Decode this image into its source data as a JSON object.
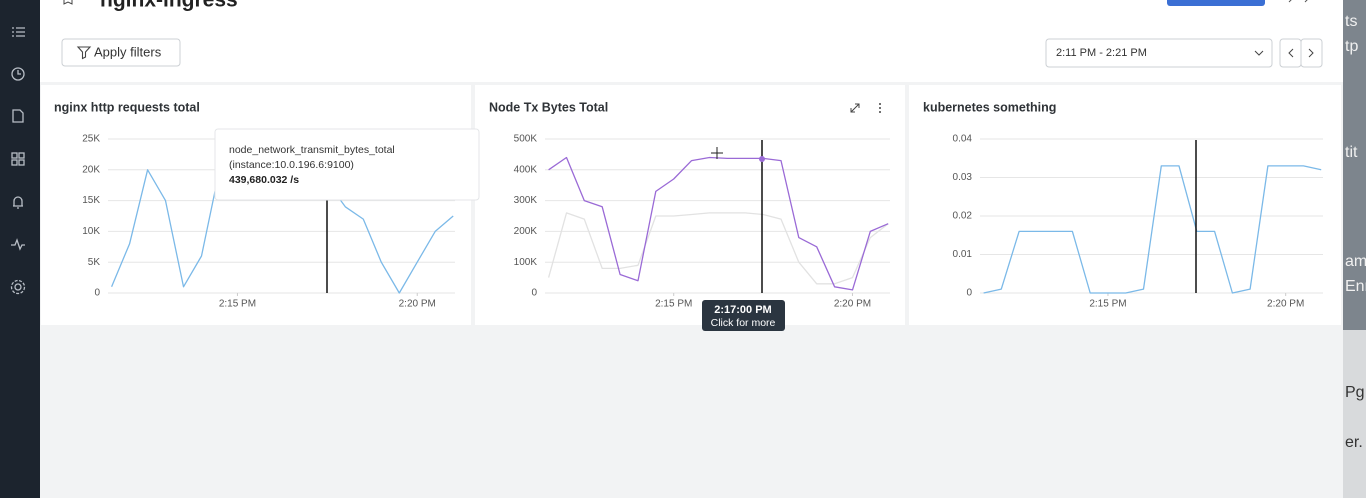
{
  "header": {
    "title": "nginx-ingress",
    "apply_filters": "Apply filters",
    "time_range": "2:11 PM - 2:21 PM"
  },
  "panels": [
    {
      "title": "nginx http requests total",
      "x": [
        11.5,
        12,
        12.5,
        13,
        13.5,
        14,
        14.5,
        15,
        15.5,
        16,
        16.5,
        17,
        17.5,
        18,
        18.5,
        19,
        19.5,
        20,
        20.5,
        21
      ],
      "xlim": [
        11.4,
        21.05
      ],
      "xticks": [
        {
          "value": 15,
          "label": "2:15 PM"
        },
        {
          "value": 20,
          "label": "2:20 PM"
        }
      ],
      "ylim": [
        0,
        25000
      ],
      "yticks": [
        0,
        {
          "value": 5000,
          "label": "5K"
        },
        {
          "value": 10000,
          "label": "10K"
        },
        {
          "value": 15000,
          "label": "15K"
        },
        {
          "value": 20000,
          "label": "20K"
        },
        {
          "value": 25000,
          "label": "25K"
        }
      ],
      "series": [
        {
          "color": "#7bb9e8",
          "values": [
            1000,
            8000,
            20000,
            15000,
            1000,
            6000,
            20000,
            22000,
            22000,
            22000,
            21000,
            20000,
            18000,
            14000,
            12000,
            5000,
            0,
            5000,
            10000,
            12500
          ]
        }
      ]
    },
    {
      "title": "Node Tx Bytes Total",
      "x": [
        11.5,
        12,
        12.5,
        13,
        13.5,
        14,
        14.5,
        15,
        15.5,
        16,
        16.5,
        17,
        17.5,
        18,
        18.5,
        19,
        19.5,
        20,
        20.5,
        21
      ],
      "xlim": [
        11.4,
        21.05
      ],
      "xticks": [
        {
          "value": 15,
          "label": "2:15 PM"
        },
        {
          "value": 20,
          "label": "2:20 PM"
        }
      ],
      "ylim": [
        0,
        500000
      ],
      "yticks": [
        0,
        {
          "value": 100000,
          "label": "100K"
        },
        {
          "value": 200000,
          "label": "200K"
        },
        {
          "value": 300000,
          "label": "300K"
        },
        {
          "value": 400000,
          "label": "400K"
        },
        {
          "value": 500000,
          "label": "500K"
        }
      ],
      "series": [
        {
          "color": "#e2e2e2",
          "values": [
            50000,
            260000,
            240000,
            80000,
            80000,
            90000,
            250000,
            250000,
            255000,
            260000,
            260000,
            260000,
            255000,
            240000,
            100000,
            30000,
            30000,
            50000,
            180000,
            225000
          ]
        },
        {
          "color": "#9a6ad6",
          "values": [
            400000,
            440000,
            300000,
            280000,
            60000,
            40000,
            330000,
            370000,
            430000,
            440000,
            437000,
            437000,
            437000,
            430000,
            180000,
            150000,
            20000,
            10000,
            200000,
            225000
          ]
        }
      ]
    },
    {
      "title": "kubernetes something",
      "x": [
        11.5,
        12,
        12.5,
        13,
        13.5,
        14,
        14.5,
        15,
        15.5,
        16,
        16.5,
        17,
        17.5,
        18,
        18.5,
        19,
        19.5,
        20,
        20.5,
        21
      ],
      "xlim": [
        11.4,
        21.05
      ],
      "xticks": [
        {
          "value": 15,
          "label": "2:15 PM"
        },
        {
          "value": 20,
          "label": "2:20 PM"
        }
      ],
      "ylim": [
        0,
        0.04
      ],
      "yticks": [
        0,
        0.01,
        0.02,
        0.03,
        0.04
      ],
      "series": [
        {
          "color": "#7bb9e8",
          "values": [
            0,
            0.001,
            0.016,
            0.016,
            0.016,
            0.016,
            0,
            0,
            0,
            0.001,
            0.033,
            0.033,
            0.016,
            0.016,
            0,
            0.001,
            0.033,
            0.033,
            0.033,
            0.032
          ]
        }
      ]
    }
  ],
  "tooltip": {
    "metric": "node_network_transmit_bytes_total",
    "instance": "(instance:10.0.196.6:9100)",
    "value": "439,680.032 /s"
  },
  "cursor_tooltip": {
    "time": "2:17:00 PM",
    "hint": "Click for more"
  },
  "background_window": {
    "fragments": [
      "ts",
      "tp",
      "tit",
      "am",
      "Enr",
      "Pg",
      "er."
    ]
  }
}
